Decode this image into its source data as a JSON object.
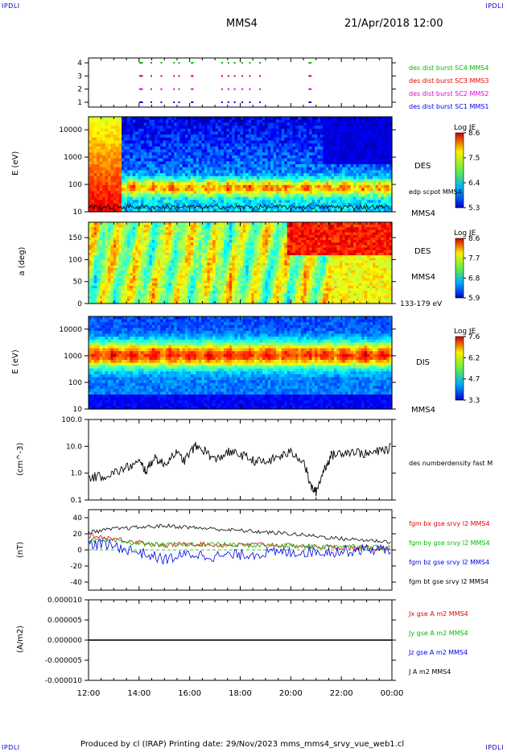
{
  "page": {
    "corner_labels": [
      "IPDLI",
      "IPDLI",
      "IPDLI",
      "IPDLI"
    ],
    "title": "MMS4",
    "date": "21/Apr/2018 12:00",
    "footer": "Produced by cl (IRAP)   Printing date: 29/Nov/2023   mms_mms4_srvy_vue_web1.cl"
  },
  "colors": {
    "jet_low": "#0000cc",
    "jet_high": "#cc0000",
    "red": "#ee0000",
    "green": "#00bb00",
    "blue": "#0000ee",
    "magenta": "#dd00dd",
    "black": "#000000"
  },
  "chart_data": [
    {
      "type": "scatter",
      "id": "burst",
      "yticks": [
        "1",
        "2",
        "3",
        "4"
      ],
      "series": [
        {
          "name": "des dist burst SC1 MMS1",
          "color": "#0000ee",
          "y": 1
        },
        {
          "name": "des dist burst SC2 MMS2",
          "color": "#dd00dd",
          "y": 2
        },
        {
          "name": "des dist burst SC3 MMS3",
          "color": "#ee0000",
          "y": 3
        },
        {
          "name": "des dist burst SC4 MMS4",
          "color": "#00bb00",
          "y": 4
        }
      ],
      "burst_hours": [
        14.0,
        14.45,
        14.85,
        15.35,
        15.55,
        16.05,
        17.25,
        17.5,
        17.75,
        18.05,
        18.35,
        18.75,
        20.7
      ],
      "burst_widths": [
        0.15,
        0.05,
        0.05,
        0.05,
        0.05,
        0.1,
        0.03,
        0.03,
        0.03,
        0.03,
        0.03,
        0.03,
        0.12
      ]
    },
    {
      "type": "heatmap",
      "id": "des_energy",
      "ylabel": "E (eV)",
      "yticks": [
        "10",
        "100",
        "1000",
        "10000"
      ],
      "colorbar": {
        "title": "Log JE",
        "ticks": [
          "8.6",
          "7.5",
          "6.4",
          "5.3"
        ]
      },
      "labels": [
        "DES",
        "edp scpot MMS4",
        "MMS4"
      ]
    },
    {
      "type": "heatmap",
      "id": "des_pitch",
      "ylabel": "a (deg)",
      "yticks": [
        "0",
        "50",
        "100",
        "150"
      ],
      "colorbar": {
        "title": "Log JE",
        "ticks": [
          "8.6",
          "7.7",
          "6.8",
          "5.9"
        ]
      },
      "labels": [
        "DES",
        "MMS4",
        "133-179 eV"
      ]
    },
    {
      "type": "heatmap",
      "id": "dis_energy",
      "ylabel": "E (eV)",
      "yticks": [
        "10",
        "100",
        "1000",
        "10000"
      ],
      "colorbar": {
        "title": "Log JE",
        "ticks": [
          "7.6",
          "6.2",
          "4.7",
          "3.3"
        ]
      },
      "labels": [
        "DIS",
        "MMS4"
      ]
    },
    {
      "type": "line",
      "id": "density",
      "ylabel": "(cm^-3)",
      "yscale": "log",
      "ylim": [
        0.1,
        100.0
      ],
      "yticks": [
        "0.1",
        "1.0",
        "10.0",
        "100.0"
      ],
      "series": [
        {
          "name": "des numberdensity fast M",
          "color": "#000000",
          "x": [
            12.0,
            12.5,
            13.0,
            13.5,
            14.0,
            14.3,
            14.6,
            15.0,
            15.4,
            15.8,
            16.2,
            16.6,
            17.0,
            17.5,
            18.0,
            18.5,
            19.0,
            19.5,
            20.0,
            20.5,
            20.8,
            21.0,
            21.3,
            21.6,
            22.0,
            22.5,
            23.0,
            23.5,
            24.0
          ],
          "y": [
            0.7,
            0.75,
            1.0,
            1.6,
            2.5,
            1.2,
            4.0,
            2.0,
            6.0,
            3.0,
            10.0,
            7.0,
            3.0,
            6.0,
            5.0,
            3.0,
            2.5,
            4.0,
            6.0,
            3.0,
            0.3,
            0.2,
            1.3,
            4.5,
            6.0,
            6.5,
            5.0,
            6.5,
            9.0
          ]
        }
      ]
    },
    {
      "type": "line",
      "id": "bfield",
      "ylabel": "(nT)",
      "ylim": [
        -50,
        50
      ],
      "yticks": [
        "-40",
        "-20",
        "0",
        "20",
        "40"
      ],
      "series": [
        {
          "name": "fgm bx gse srvy l2 MMS4",
          "color": "#ee0000",
          "x": [
            12.0,
            13.0,
            14.0,
            15.0,
            16.0,
            17.0,
            18.0,
            19.0,
            20.0,
            21.0,
            22.0,
            23.0,
            24.0
          ],
          "y": [
            18.0,
            14.0,
            10.0,
            5.0,
            8.0,
            6.0,
            6.0,
            7.0,
            5.0,
            4.0,
            3.0,
            2.0,
            2.0
          ]
        },
        {
          "name": "fgm by gse srvy l2 MMS4",
          "color": "#00bb00",
          "x": [
            12.0,
            13.0,
            14.0,
            15.0,
            16.0,
            17.0,
            18.0,
            19.0,
            20.0,
            21.0,
            22.0,
            23.0,
            24.0
          ],
          "y": [
            12.0,
            11.0,
            8.0,
            6.0,
            7.0,
            7.0,
            6.0,
            5.0,
            5.0,
            4.0,
            5.0,
            4.0,
            3.0
          ]
        },
        {
          "name": "fgm bz gse srvy l2 MMS4",
          "color": "#0000ee",
          "x": [
            12.0,
            13.0,
            14.0,
            15.0,
            16.0,
            17.0,
            18.0,
            19.0,
            20.0,
            21.0,
            22.0,
            23.0,
            24.0
          ],
          "y": [
            8.0,
            5.0,
            -3.0,
            -12.0,
            -5.0,
            -8.0,
            -6.0,
            -4.0,
            -3.0,
            -2.0,
            -2.0,
            1.0,
            0.0
          ]
        },
        {
          "name": "fgm bt gse srvy l2 MMS4",
          "color": "#000000",
          "x": [
            12.0,
            13.0,
            14.0,
            15.0,
            16.0,
            17.0,
            18.0,
            19.0,
            20.0,
            21.0,
            22.0,
            23.0,
            24.0
          ],
          "y": [
            22.0,
            26.0,
            28.0,
            30.0,
            28.0,
            26.0,
            24.0,
            22.0,
            20.0,
            17.0,
            14.0,
            12.0,
            10.0
          ]
        }
      ]
    },
    {
      "type": "line",
      "id": "current",
      "ylabel": "(A/m2)",
      "ylim": [
        -1e-05,
        1e-05
      ],
      "yticks": [
        "-0.000010",
        "-0.000005",
        "0.000000",
        "0.000005",
        "0.000010"
      ],
      "xticks": [
        "12:00",
        "14:00",
        "16:00",
        "18:00",
        "20:00",
        "22:00",
        "00:00"
      ],
      "series": [
        {
          "name": "Jx gse A m2 MMS4",
          "color": "#ee0000",
          "x": [
            12,
            24
          ],
          "y": [
            0,
            0
          ]
        },
        {
          "name": "Jy gse A m2 MMS4",
          "color": "#00bb00",
          "x": [
            12,
            24
          ],
          "y": [
            0,
            0
          ]
        },
        {
          "name": "Jz gse A m2 MMS4",
          "color": "#0000ee",
          "x": [
            12,
            24
          ],
          "y": [
            0,
            0
          ]
        },
        {
          "name": "J A m2 MMS4",
          "color": "#000000",
          "x": [
            12,
            24
          ],
          "y": [
            0,
            0
          ]
        }
      ]
    }
  ]
}
